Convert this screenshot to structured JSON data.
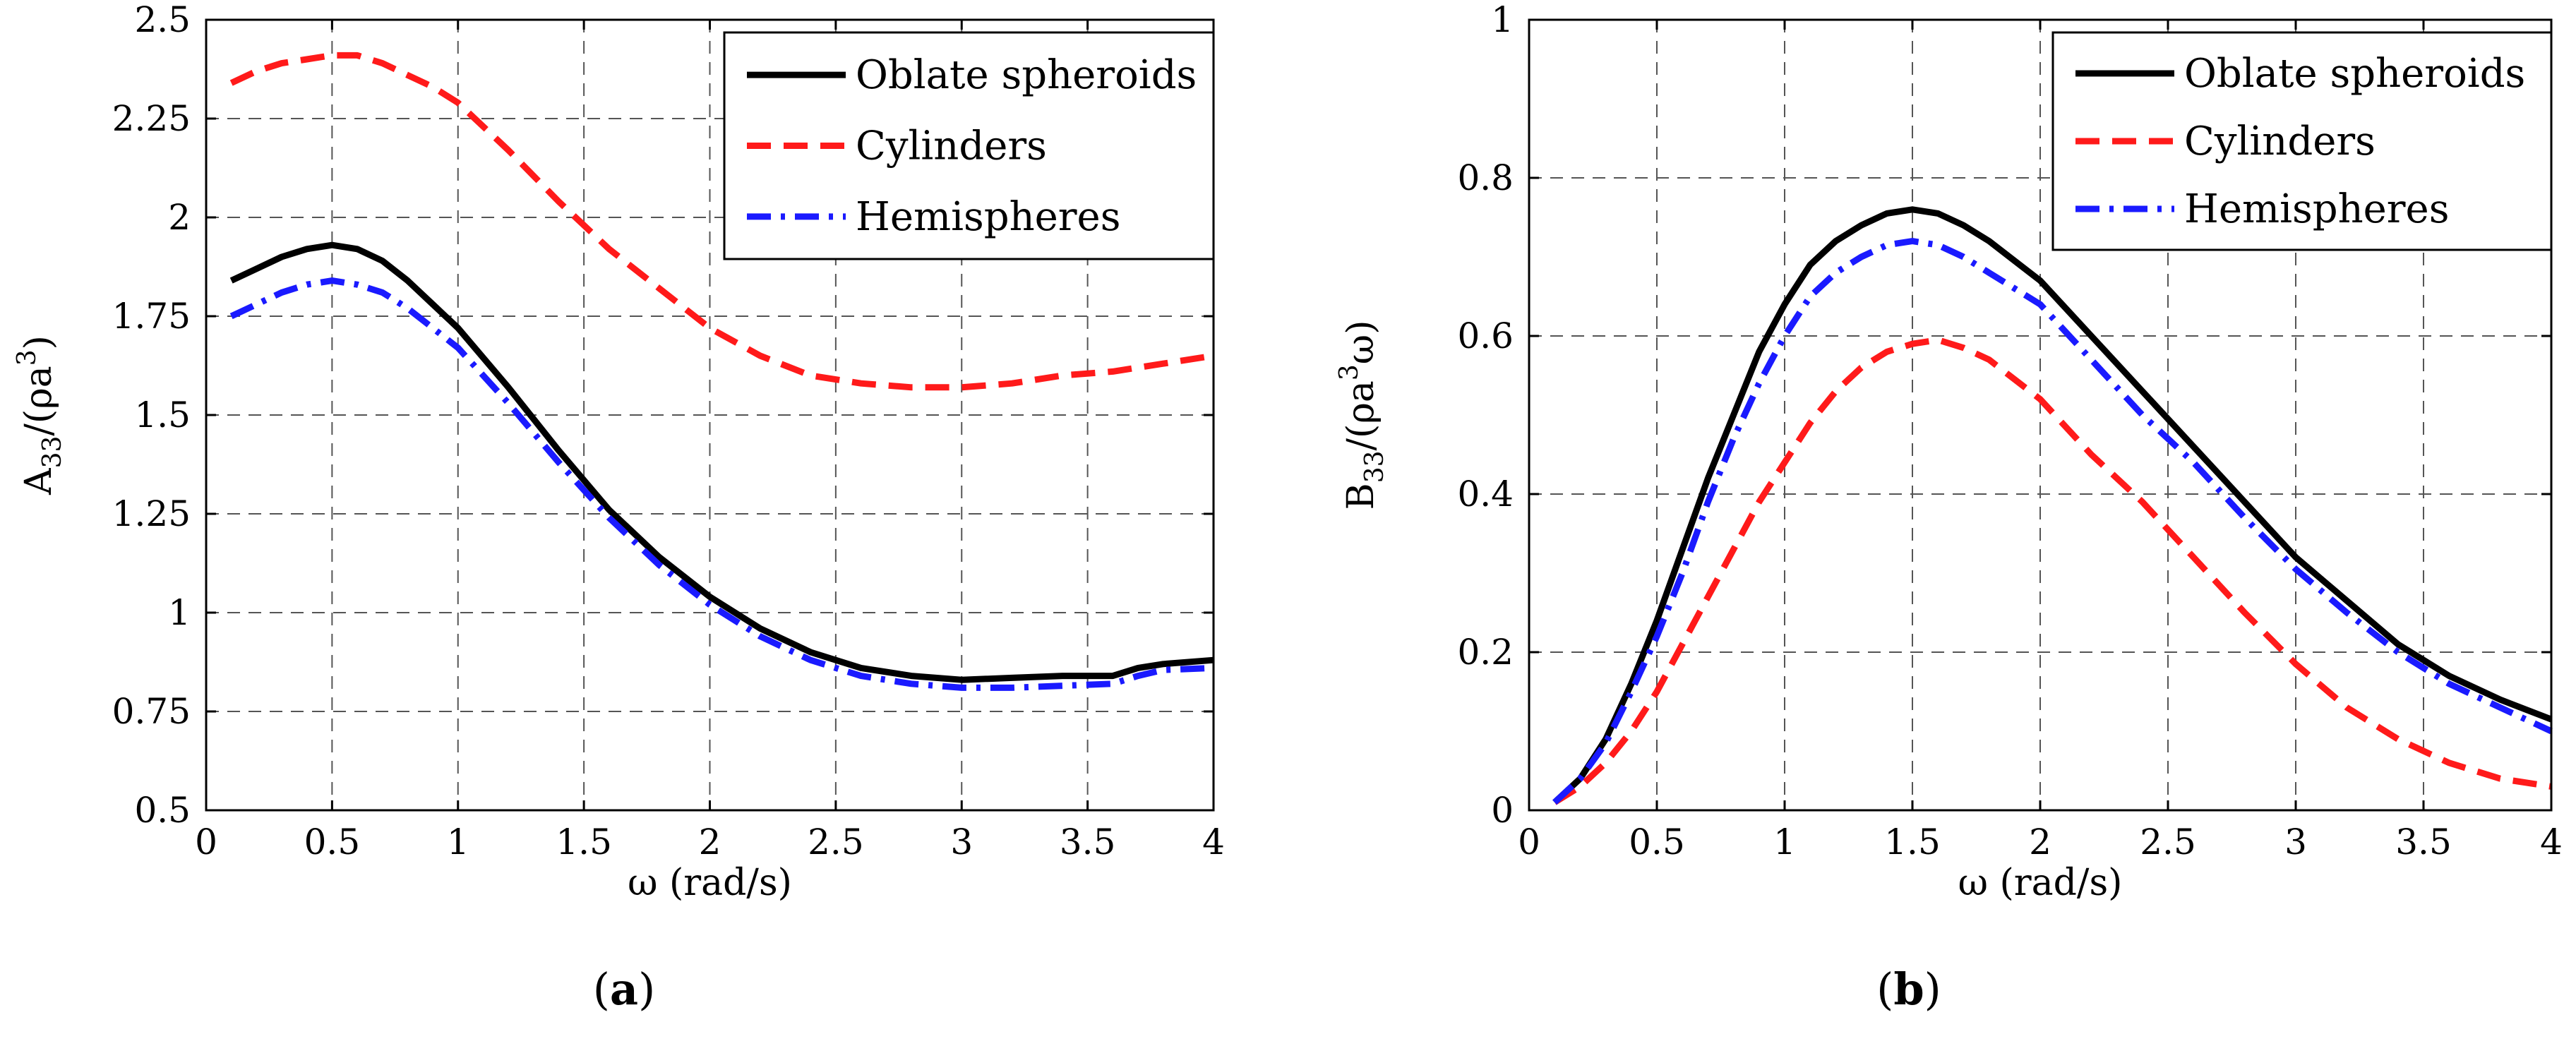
{
  "chart_data": [
    {
      "type": "line",
      "panel": "a",
      "caption_open": "(",
      "caption_letter": "a",
      "caption_close": ")",
      "title": "",
      "xlabel": "ω (rad/s)",
      "ylabel_main": "A",
      "ylabel_sub": "33",
      "ylabel_mid": "/(ρa",
      "ylabel_sup": "3",
      "ylabel_end": ")",
      "xlim": [
        0,
        4
      ],
      "ylim": [
        0.5,
        2.5
      ],
      "xticks": [
        0,
        0.5,
        1,
        1.5,
        2,
        2.5,
        3,
        3.5,
        4
      ],
      "xtick_labels": [
        "0",
        "0.5",
        "1",
        "1.5",
        "2",
        "2.5",
        "3",
        "3.5",
        "4"
      ],
      "yticks": [
        0.5,
        0.75,
        1,
        1.25,
        1.5,
        1.75,
        2,
        2.25,
        2.5
      ],
      "ytick_labels": [
        "0.5",
        "0.75",
        "1",
        "1.25",
        "1.5",
        "1.75",
        "2",
        "2.25",
        "2.5"
      ],
      "grid": true,
      "legend_position": "top-right",
      "series": [
        {
          "name": "Oblate spheroids",
          "color": "#000000",
          "style": "solid",
          "x": [
            0.1,
            0.2,
            0.3,
            0.4,
            0.5,
            0.6,
            0.7,
            0.8,
            0.9,
            1.0,
            1.2,
            1.4,
            1.6,
            1.8,
            2.0,
            2.2,
            2.4,
            2.6,
            2.8,
            3.0,
            3.2,
            3.4,
            3.6,
            3.7,
            3.8,
            4.0
          ],
          "y": [
            1.84,
            1.87,
            1.9,
            1.92,
            1.93,
            1.92,
            1.89,
            1.84,
            1.78,
            1.72,
            1.57,
            1.41,
            1.26,
            1.14,
            1.04,
            0.96,
            0.9,
            0.86,
            0.84,
            0.83,
            0.835,
            0.84,
            0.84,
            0.86,
            0.87,
            0.88
          ]
        },
        {
          "name": "Cylinders",
          "color": "#ff1a1a",
          "style": "dashed",
          "x": [
            0.1,
            0.2,
            0.3,
            0.4,
            0.5,
            0.6,
            0.7,
            0.8,
            0.9,
            1.0,
            1.2,
            1.4,
            1.6,
            1.8,
            2.0,
            2.2,
            2.4,
            2.6,
            2.8,
            3.0,
            3.2,
            3.4,
            3.6,
            3.8,
            4.0
          ],
          "y": [
            2.34,
            2.37,
            2.39,
            2.4,
            2.41,
            2.41,
            2.39,
            2.36,
            2.33,
            2.29,
            2.17,
            2.04,
            1.92,
            1.82,
            1.72,
            1.65,
            1.6,
            1.58,
            1.57,
            1.57,
            1.58,
            1.6,
            1.61,
            1.63,
            1.65
          ]
        },
        {
          "name": "Hemispheres",
          "color": "#1a1aff",
          "style": "dashdot",
          "x": [
            0.1,
            0.2,
            0.3,
            0.4,
            0.5,
            0.6,
            0.7,
            0.8,
            0.9,
            1.0,
            1.2,
            1.4,
            1.6,
            1.8,
            2.0,
            2.2,
            2.4,
            2.6,
            2.8,
            3.0,
            3.2,
            3.4,
            3.6,
            3.7,
            3.8,
            4.0
          ],
          "y": [
            1.75,
            1.78,
            1.81,
            1.83,
            1.84,
            1.83,
            1.81,
            1.77,
            1.72,
            1.67,
            1.53,
            1.38,
            1.24,
            1.12,
            1.02,
            0.94,
            0.88,
            0.84,
            0.82,
            0.81,
            0.81,
            0.815,
            0.82,
            0.84,
            0.855,
            0.86
          ]
        }
      ]
    },
    {
      "type": "line",
      "panel": "b",
      "caption_open": "(",
      "caption_letter": "b",
      "caption_close": ")",
      "title": "",
      "xlabel": "ω (rad/s)",
      "ylabel_main": "B",
      "ylabel_sub": "33",
      "ylabel_mid": "/(ρa",
      "ylabel_sup": "3",
      "ylabel_end": "ω)",
      "xlim": [
        0,
        4
      ],
      "ylim": [
        0,
        1
      ],
      "xticks": [
        0,
        0.5,
        1,
        1.5,
        2,
        2.5,
        3,
        3.5,
        4
      ],
      "xtick_labels": [
        "0",
        "0.5",
        "1",
        "1.5",
        "2",
        "2.5",
        "3",
        "3.5",
        "4"
      ],
      "yticks": [
        0,
        0.2,
        0.4,
        0.6,
        0.8,
        1
      ],
      "ytick_labels": [
        "0",
        "0.2",
        "0.4",
        "0.6",
        "0.8",
        "1"
      ],
      "grid": true,
      "legend_position": "top-right",
      "series": [
        {
          "name": "Oblate spheroids",
          "color": "#000000",
          "style": "solid",
          "x": [
            0.1,
            0.2,
            0.3,
            0.4,
            0.5,
            0.6,
            0.7,
            0.8,
            0.9,
            1.0,
            1.1,
            1.2,
            1.3,
            1.4,
            1.5,
            1.6,
            1.7,
            1.8,
            2.0,
            2.2,
            2.4,
            2.6,
            2.8,
            3.0,
            3.2,
            3.4,
            3.6,
            3.8,
            4.0
          ],
          "y": [
            0.01,
            0.04,
            0.09,
            0.16,
            0.24,
            0.33,
            0.42,
            0.5,
            0.58,
            0.64,
            0.69,
            0.72,
            0.74,
            0.755,
            0.76,
            0.755,
            0.74,
            0.72,
            0.67,
            0.6,
            0.53,
            0.46,
            0.39,
            0.32,
            0.265,
            0.21,
            0.17,
            0.14,
            0.115
          ]
        },
        {
          "name": "Cylinders",
          "color": "#ff1a1a",
          "style": "dashed",
          "x": [
            0.1,
            0.2,
            0.3,
            0.4,
            0.5,
            0.6,
            0.7,
            0.8,
            0.9,
            1.0,
            1.1,
            1.2,
            1.3,
            1.4,
            1.5,
            1.6,
            1.7,
            1.8,
            2.0,
            2.2,
            2.4,
            2.6,
            2.8,
            3.0,
            3.2,
            3.4,
            3.6,
            3.8,
            4.0
          ],
          "y": [
            0.01,
            0.03,
            0.06,
            0.1,
            0.15,
            0.21,
            0.27,
            0.33,
            0.39,
            0.44,
            0.49,
            0.53,
            0.56,
            0.58,
            0.59,
            0.595,
            0.585,
            0.57,
            0.52,
            0.45,
            0.39,
            0.32,
            0.25,
            0.185,
            0.13,
            0.09,
            0.06,
            0.04,
            0.03
          ]
        },
        {
          "name": "Hemispheres",
          "color": "#1a1aff",
          "style": "dashdot",
          "x": [
            0.1,
            0.2,
            0.3,
            0.4,
            0.5,
            0.6,
            0.7,
            0.8,
            0.9,
            1.0,
            1.1,
            1.2,
            1.3,
            1.4,
            1.5,
            1.6,
            1.7,
            1.8,
            2.0,
            2.2,
            2.4,
            2.6,
            2.8,
            3.0,
            3.2,
            3.4,
            3.6,
            3.8,
            4.0
          ],
          "y": [
            0.01,
            0.04,
            0.085,
            0.15,
            0.22,
            0.3,
            0.39,
            0.47,
            0.54,
            0.6,
            0.65,
            0.68,
            0.7,
            0.715,
            0.72,
            0.715,
            0.7,
            0.68,
            0.64,
            0.57,
            0.5,
            0.44,
            0.37,
            0.305,
            0.25,
            0.2,
            0.16,
            0.13,
            0.1
          ]
        }
      ]
    }
  ]
}
